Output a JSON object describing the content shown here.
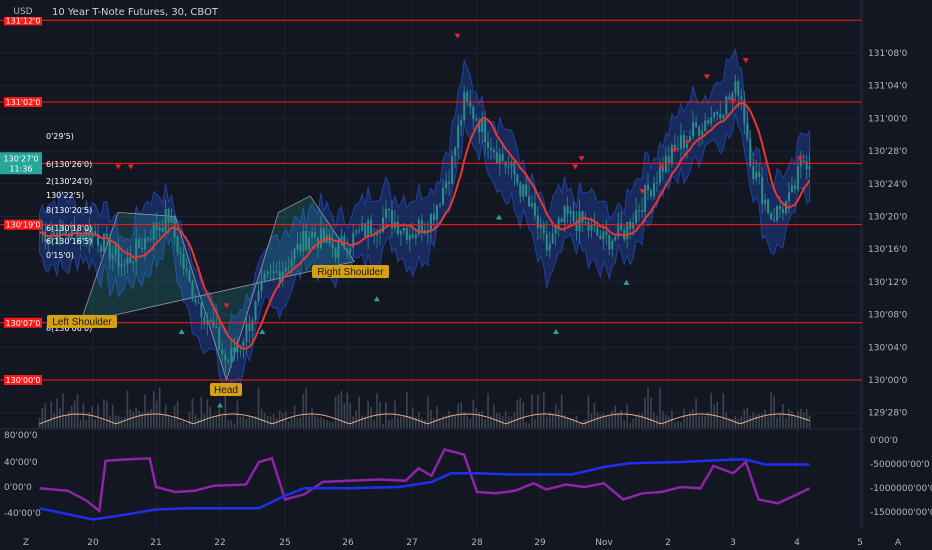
{
  "header": {
    "currency": "USD",
    "symbol_title": "10 Year T-Note Futures, 30, CBOT"
  },
  "colors": {
    "background": "#131722",
    "band_fill": "#1e3a8a",
    "band_edge": "#2962ff",
    "candles": "#2a8f8a",
    "moving_average": "#e53935",
    "levels": "#ff1a1a",
    "pattern_fill": "#26a69a",
    "pattern_label": "#d4a017",
    "volume_line": "#e8a987",
    "osc_purple": "#8e24aa",
    "osc_blue": "#1e2ff0",
    "price_tag": "#26a69a"
  },
  "price_axis": {
    "ticks": [
      "131'08'0",
      "131'04'0",
      "131'00'0",
      "130'28'0",
      "130'24'0",
      "130'20'0",
      "130'16'0",
      "130'12'0",
      "130'08'0",
      "130'04'0",
      "130'00'0",
      "129'28'0"
    ],
    "last_price": "130'27'0",
    "countdown": "11:36"
  },
  "time_axis": {
    "labels": [
      "20",
      "21",
      "22",
      "25",
      "26",
      "27",
      "28",
      "29",
      "Nov",
      "2",
      "3",
      "4",
      "5"
    ],
    "left_icon": "Z",
    "right_icon": "A"
  },
  "levels": [
    {
      "label": "131'12'0"
    },
    {
      "label": "131'02'0"
    },
    {
      "label": "130'26'5"
    },
    {
      "label": "130'19'0"
    },
    {
      "label": "130'07'0"
    },
    {
      "label": "130'00'0"
    }
  ],
  "fib_labels": [
    "0'29'5)",
    "6(130'26'0)",
    "2(130'24'0)",
    "130'22'5)",
    "8(130'20'5)",
    "6(130'18'0)",
    "6(130'16'5)",
    "0'15'0)",
    "8(130'06'0)"
  ],
  "pattern_labels": {
    "left": "Left Shoulder",
    "head": "Head",
    "right": "Right Shoulder"
  },
  "osc_axis_left": [
    "80'00'0",
    "40'00'0",
    "0'00'0",
    "-40'00'0"
  ],
  "osc_axis_right": [
    "0'00'0",
    "-500000'00'0",
    "-1000000'00'0",
    "-1500000'00'0"
  ],
  "chart_data": {
    "type": "candlestick",
    "title": "10 Year T-Note Futures, 30, CBOT",
    "x_sessions": [
      "20",
      "21",
      "22",
      "25",
      "26",
      "27",
      "28",
      "29",
      "Nov",
      "2",
      "3",
      "4",
      "5"
    ],
    "y_range": [
      "129'26'0",
      "131'14'0"
    ],
    "price_close_path": [
      [
        0,
        "130'18'0"
      ],
      [
        0.5,
        "130'14'0"
      ],
      [
        0.9,
        "130'18'0"
      ],
      [
        1.2,
        "130'20'0"
      ],
      [
        1.5,
        "130'12'0"
      ],
      [
        1.9,
        "130'06'0"
      ],
      [
        2.1,
        "130'02'0"
      ],
      [
        2.4,
        "130'06'0"
      ],
      [
        2.7,
        "130'12'0"
      ],
      [
        3.0,
        "130'14'0"
      ],
      [
        3.4,
        "130'18'0"
      ],
      [
        3.8,
        "130'16'0"
      ],
      [
        4.2,
        "130'18'0"
      ],
      [
        4.6,
        "130'20'0"
      ],
      [
        5.0,
        "130'18'0"
      ],
      [
        5.3,
        "130'20'0"
      ],
      [
        5.6,
        "130'26'0"
      ],
      [
        5.8,
        "131'02'0"
      ],
      [
        6.0,
        "131'00'0"
      ],
      [
        6.3,
        "130'28'0"
      ],
      [
        6.6,
        "130'25'0"
      ],
      [
        6.9,
        "130'20'0"
      ],
      [
        7.1,
        "130'16'0"
      ],
      [
        7.4,
        "130'20'0"
      ],
      [
        7.7,
        "130'19'0"
      ],
      [
        8.0,
        "130'17'0"
      ],
      [
        8.3,
        "130'18'0"
      ],
      [
        8.6,
        "130'22'0"
      ],
      [
        8.9,
        "130'26'0"
      ],
      [
        9.2,
        "130'29'0"
      ],
      [
        9.6,
        "131'00'0"
      ],
      [
        9.9,
        "131'02'0"
      ],
      [
        10.1,
        "131'04'0"
      ],
      [
        10.3,
        "130'26'0"
      ],
      [
        10.6,
        "130'20'0"
      ],
      [
        10.9,
        "130'22'0"
      ],
      [
        11.1,
        "130'27'0"
      ]
    ],
    "levels": [
      "131'12'0",
      "131'02'0",
      "130'26'5",
      "130'19'0",
      "130'07'0",
      "130'00'0"
    ],
    "pattern": "head-and-shoulders"
  }
}
